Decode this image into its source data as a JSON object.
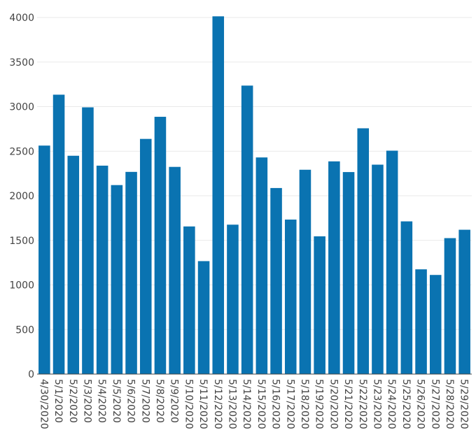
{
  "colors": {
    "bar": "#0a73b1",
    "grid": "#e9e9e9",
    "axis": "#444444",
    "tick_text": "#444444"
  },
  "chart_data": {
    "type": "bar",
    "title": "",
    "xlabel": "",
    "ylabel": "",
    "ylim": [
      0,
      4000
    ],
    "yticks": [
      0,
      500,
      1000,
      1500,
      2000,
      2500,
      3000,
      3500,
      4000
    ],
    "ytick_labels": [
      "0",
      "500",
      "1000",
      "1500",
      "2000",
      "2500",
      "3000",
      "3500",
      "4000"
    ],
    "grid": true,
    "legend": "none",
    "categories": [
      "4/30/2020",
      "5/1/2020",
      "5/2/2020",
      "5/3/2020",
      "5/4/2020",
      "5/5/2020",
      "5/6/2020",
      "5/7/2020",
      "5/8/2020",
      "5/9/2020",
      "5/10/2020",
      "5/11/2020",
      "5/12/2020",
      "5/13/2020",
      "5/14/2020",
      "5/15/2020",
      "5/16/2020",
      "5/17/2020",
      "5/18/2020",
      "5/19/2020",
      "5/20/2020",
      "5/21/2020",
      "5/22/2020",
      "5/23/2020",
      "5/24/2020",
      "5/25/2020",
      "5/26/2020",
      "5/27/2020",
      "5/28/2020",
      "5/29/2020"
    ],
    "values": [
      2563,
      3134,
      2449,
      2992,
      2338,
      2120,
      2268,
      2638,
      2886,
      2324,
      1656,
      1267,
      4013,
      1676,
      3236,
      2430,
      2087,
      1733,
      2292,
      1545,
      2386,
      2266,
      2757,
      2349,
      2506,
      1713,
      1175,
      1112,
      1525,
      1619
    ]
  }
}
